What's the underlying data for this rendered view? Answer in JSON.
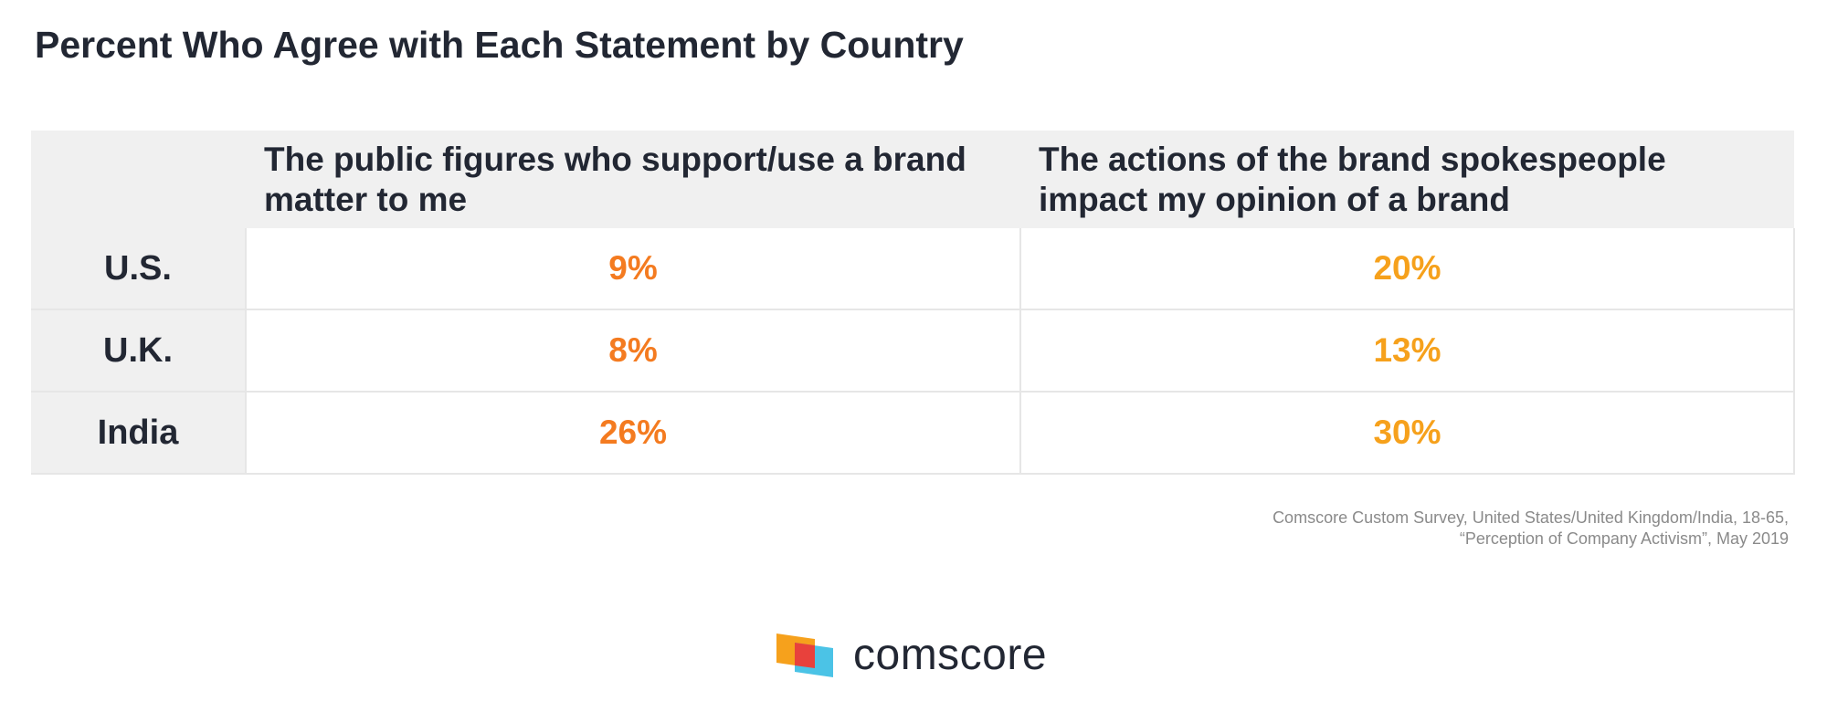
{
  "title": "Percent Who Agree with Each Statement by Country",
  "colors": {
    "col1_value": "#f47b20",
    "col2_value": "#f6a11c",
    "header_bg": "#f0f0f0",
    "text": "#222733"
  },
  "chart_data": {
    "type": "table",
    "title": "Percent Who Agree with Each Statement by Country",
    "columns": [
      "",
      "The public figures who support/use a brand matter to me",
      "The actions of the brand spokespeople impact my opinion of a brand"
    ],
    "rows": [
      {
        "label": "U.S.",
        "values": [
          "9%",
          "20%"
        ]
      },
      {
        "label": "U.K.",
        "values": [
          "8%",
          "13%"
        ]
      },
      {
        "label": "India",
        "values": [
          "26%",
          "30%"
        ]
      }
    ]
  },
  "source": {
    "line1": "Comscore Custom Survey, United States/United Kingdom/India, 18-65,",
    "line2": "“Perception of Company Activism”, May 2019"
  },
  "logo": {
    "text": "comscore",
    "icon": "comscore-logo-icon"
  }
}
